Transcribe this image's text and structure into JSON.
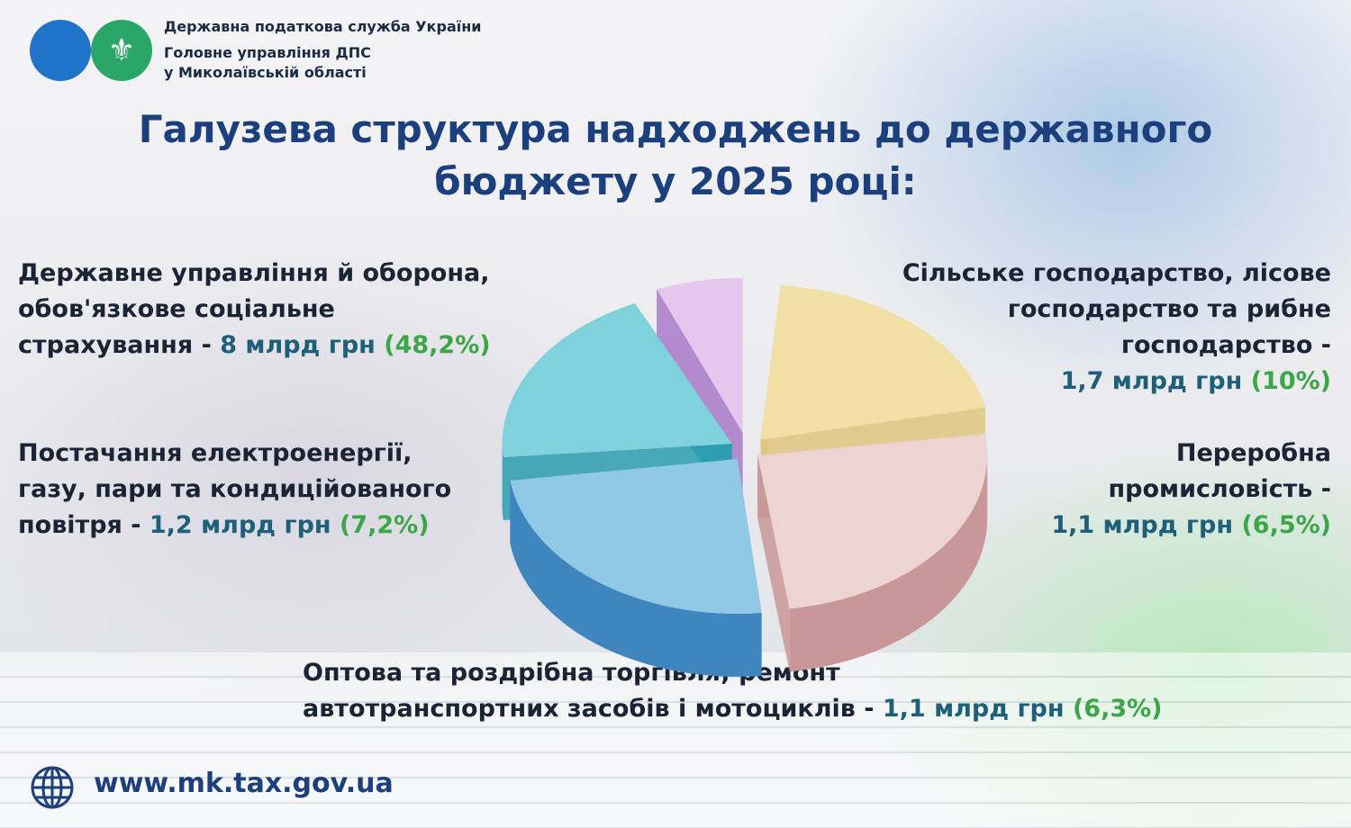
{
  "header": {
    "agency_line1": "Державна податкова служба України",
    "agency_line2": "Головне управління ДПС",
    "agency_line3": "у Миколаївській області",
    "logo_icon": "trident-icon"
  },
  "title_line1": "Галузева структура надходжень до державного",
  "title_line2": "бюджету у 2025 році:",
  "labels": {
    "gov_line1": "Державне управління й оборона,",
    "gov_line2": "обов'язкове соціальне",
    "gov_line3": "страхування - ",
    "gov_amount": "8 млрд грн",
    "gov_pct": "(48,2%)",
    "agri_line1": "Сільське господарство, лісове",
    "agri_line2": "господарство та рибне",
    "agri_line3": "господарство -",
    "agri_amount": "1,7 млрд грн",
    "agri_pct": "(10%)",
    "energy_line1": "Постачання електроенергії,",
    "energy_line2": "газу, пари та кондиційованого",
    "energy_line3": "повітря - ",
    "energy_amount": "1,2 млрд грн",
    "energy_pct": "(7,2%)",
    "manuf_line1": "Переробна",
    "manuf_line2": "промисловість -",
    "manuf_amount": "1,1 млрд грн",
    "manuf_pct": "(6,5%)",
    "trade_line1": "Оптова та роздрібна торгівля; ремонт",
    "trade_line2": "автотранспортних засобів і мотоциклів - ",
    "trade_amount": "1,1 млрд грн",
    "trade_pct": "(6,3%)"
  },
  "footer": {
    "website": "www.mk.tax.gov.ua",
    "globe_icon": "globe-icon"
  },
  "chart_data": {
    "type": "pie",
    "style": "3d exploded pie",
    "slices": [
      {
        "color_top": "#f1dfa6",
        "color_side": "#e0c67c"
      },
      {
        "color_top": "#ecd4d2",
        "color_side": "#c99797"
      },
      {
        "color_top": "#8fc9e6",
        "color_side": "#3f86bf"
      },
      {
        "color_top": "#7fd2dc",
        "color_side": "#2a9cb0"
      },
      {
        "color_top": "#e5c6ec",
        "color_side": "#a979c8"
      }
    ]
  }
}
